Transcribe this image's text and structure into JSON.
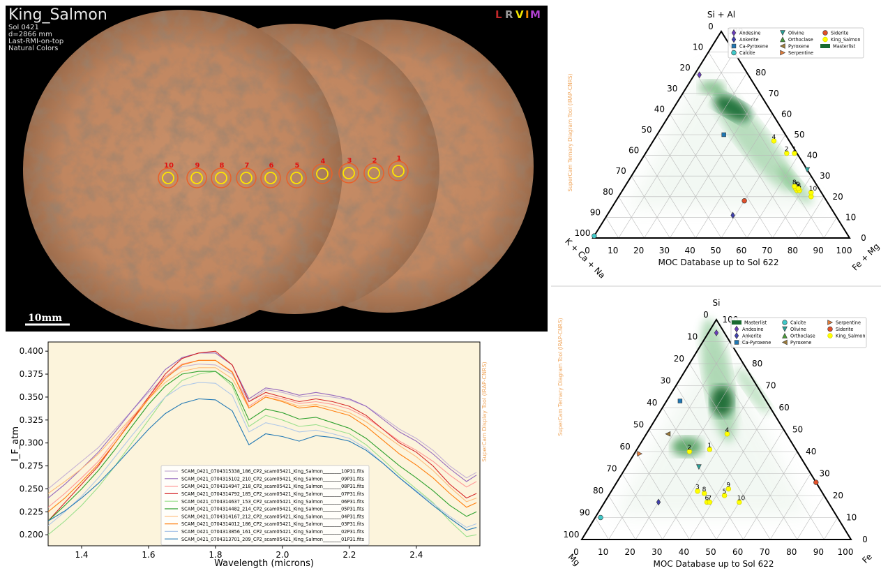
{
  "image_panel": {
    "title": "King_Salmon",
    "info": [
      "Sol 0421",
      "d=2866 mm",
      "Last-RMI-on-top",
      "Natural Colors"
    ],
    "channels": [
      "L",
      "R",
      "V",
      "I",
      "M"
    ],
    "scale_bar": "10mm",
    "targets": [
      "10",
      "9",
      "8",
      "7",
      "6",
      "5",
      "4",
      "3",
      "2",
      "1"
    ]
  },
  "chart_data": [
    {
      "type": "line",
      "xlabel": "Wavelength (microns)",
      "ylabel": "I_F_atm",
      "watermark": "SuperCam Display Tool (IRAP-CNRS)",
      "xlim": [
        1.3,
        2.59
      ],
      "ylim": [
        0.188,
        0.41
      ],
      "xticks": [
        1.4,
        1.6,
        1.8,
        {
          "value": 2.0,
          "label": "2.0"
        },
        2.2,
        2.4
      ],
      "yticks": [
        {
          "value": 0.2,
          "label": "0.200"
        },
        {
          "value": 0.225,
          "label": "0.225"
        },
        {
          "value": 0.25,
          "label": "0.250"
        },
        {
          "value": 0.275,
          "label": "0.275"
        },
        {
          "value": 0.3,
          "label": "0.300"
        },
        {
          "value": 0.325,
          "label": "0.325"
        },
        {
          "value": 0.35,
          "label": "0.350"
        },
        {
          "value": 0.375,
          "label": "0.375"
        },
        {
          "value": 0.4,
          "label": "0.400"
        }
      ],
      "legend": "lower right",
      "x": [
        1.3,
        1.35,
        1.4,
        1.45,
        1.5,
        1.55,
        1.6,
        1.65,
        1.7,
        1.75,
        1.8,
        1.85,
        1.9,
        1.95,
        2.0,
        2.05,
        2.1,
        2.15,
        2.2,
        2.25,
        2.3,
        2.35,
        2.4,
        2.45,
        2.5,
        2.55,
        2.58
      ],
      "series": [
        {
          "name": "SCAM_0421_0704315338_186_CP2_scam05421_King_Salmon________10P31.fits",
          "color": "#c5b0d5",
          "values": [
            0.25,
            0.265,
            0.28,
            0.295,
            0.315,
            0.335,
            0.355,
            0.372,
            0.383,
            0.386,
            0.385,
            0.375,
            0.345,
            0.358,
            0.355,
            0.35,
            0.352,
            0.35,
            0.347,
            0.34,
            0.328,
            0.315,
            0.305,
            0.292,
            0.275,
            0.262,
            0.268
          ]
        },
        {
          "name": "SCAM_0421_0704315102_210_CP2_scam05421_King_Salmon________09P31.fits",
          "color": "#9467bd",
          "values": [
            0.24,
            0.255,
            0.272,
            0.29,
            0.312,
            0.335,
            0.357,
            0.38,
            0.393,
            0.398,
            0.398,
            0.385,
            0.348,
            0.36,
            0.357,
            0.352,
            0.355,
            0.352,
            0.348,
            0.34,
            0.326,
            0.312,
            0.302,
            0.288,
            0.272,
            0.258,
            0.265
          ]
        },
        {
          "name": "SCAM_0421_0704314947_218_CP2_scam05421_King_Salmon________08P31.fits",
          "color": "#ff9896",
          "values": [
            0.23,
            0.245,
            0.262,
            0.28,
            0.303,
            0.327,
            0.35,
            0.372,
            0.386,
            0.39,
            0.39,
            0.378,
            0.34,
            0.352,
            0.348,
            0.343,
            0.345,
            0.342,
            0.337,
            0.328,
            0.315,
            0.302,
            0.292,
            0.28,
            0.265,
            0.252,
            0.258
          ]
        },
        {
          "name": "SCAM_0421_0704314792_185_CP2_scam05421_King_Salmon________07P31.fits",
          "color": "#d62728",
          "values": [
            0.215,
            0.235,
            0.255,
            0.275,
            0.3,
            0.325,
            0.35,
            0.375,
            0.392,
            0.398,
            0.4,
            0.385,
            0.345,
            0.355,
            0.35,
            0.345,
            0.348,
            0.345,
            0.34,
            0.33,
            0.315,
            0.3,
            0.29,
            0.275,
            0.255,
            0.24,
            0.245
          ]
        },
        {
          "name": "SCAM_0421_0704314637_153_CP2_scam05421_King_Salmon________06P31.fits",
          "color": "#98df8a",
          "values": [
            0.2,
            0.215,
            0.232,
            0.252,
            0.275,
            0.3,
            0.325,
            0.35,
            0.368,
            0.375,
            0.378,
            0.362,
            0.318,
            0.33,
            0.325,
            0.318,
            0.32,
            0.315,
            0.31,
            0.298,
            0.282,
            0.265,
            0.25,
            0.235,
            0.215,
            0.198,
            0.2
          ]
        },
        {
          "name": "SCAM_0421_0704314482_214_CP2_scam05421_King_Salmon________05P31.fits",
          "color": "#2ca02c",
          "values": [
            0.215,
            0.232,
            0.25,
            0.27,
            0.293,
            0.318,
            0.342,
            0.362,
            0.375,
            0.378,
            0.378,
            0.365,
            0.325,
            0.337,
            0.333,
            0.326,
            0.328,
            0.322,
            0.316,
            0.305,
            0.29,
            0.275,
            0.262,
            0.248,
            0.232,
            0.22,
            0.225
          ]
        },
        {
          "name": "SCAM_0421_0704314167_212_CP2_scam05421_King_Salmon________04P31.fits",
          "color": "#ffbb78",
          "values": [
            0.245,
            0.258,
            0.272,
            0.288,
            0.308,
            0.328,
            0.348,
            0.366,
            0.378,
            0.382,
            0.382,
            0.37,
            0.338,
            0.35,
            0.346,
            0.34,
            0.342,
            0.338,
            0.333,
            0.323,
            0.31,
            0.297,
            0.285,
            0.27,
            0.252,
            0.236,
            0.24
          ]
        },
        {
          "name": "SCAM_0421_0704314012_186_CP2_scam05421_King_Salmon________03P31.fits",
          "color": "#ff7f0e",
          "values": [
            0.225,
            0.24,
            0.258,
            0.277,
            0.3,
            0.324,
            0.348,
            0.37,
            0.385,
            0.39,
            0.39,
            0.377,
            0.338,
            0.35,
            0.345,
            0.338,
            0.34,
            0.335,
            0.33,
            0.318,
            0.303,
            0.288,
            0.276,
            0.262,
            0.245,
            0.23,
            0.235
          ]
        },
        {
          "name": "SCAM_0421_0704313856_161_CP2_scam05421_King_Salmon________02P31.fits",
          "color": "#aec7e8",
          "values": [
            0.21,
            0.225,
            0.242,
            0.262,
            0.285,
            0.308,
            0.33,
            0.35,
            0.362,
            0.366,
            0.365,
            0.352,
            0.312,
            0.322,
            0.318,
            0.312,
            0.314,
            0.31,
            0.305,
            0.294,
            0.278,
            0.262,
            0.248,
            0.234,
            0.22,
            0.208,
            0.212
          ]
        },
        {
          "name": "SCAM_0421_0704313701_209_CP2_scam05421_King_Salmon________01P31.fits",
          "color": "#1f77b4",
          "values": [
            0.215,
            0.226,
            0.24,
            0.256,
            0.275,
            0.295,
            0.315,
            0.332,
            0.343,
            0.348,
            0.347,
            0.335,
            0.298,
            0.31,
            0.307,
            0.302,
            0.308,
            0.306,
            0.302,
            0.292,
            0.278,
            0.262,
            0.247,
            0.232,
            0.218,
            0.205,
            0.208
          ]
        }
      ]
    },
    {
      "type": "ternary",
      "top_label": "Si + Al",
      "left_label": "K + Ca + Na",
      "right_label": "Fe + Mg",
      "xlabel": "MOC Database up to Sol 622",
      "watermark": "SuperCam Ternary Diagram Tool (IRAP-CNRS)",
      "ticks": [
        0,
        10,
        20,
        30,
        40,
        50,
        60,
        70,
        80,
        90,
        100
      ],
      "grid": true,
      "legend": "upper right",
      "series": [
        {
          "name": "Andesine",
          "color": "#6a3dbd",
          "marker": "diamond",
          "top": [
            79
          ],
          "right": [
            2
          ]
        },
        {
          "name": "Ankerite",
          "color": "#4040b0",
          "marker": "diamond",
          "top": [
            11
          ],
          "right": [
            49
          ]
        },
        {
          "name": "Ca-Pyroxene",
          "color": "#1f77b4",
          "marker": "square",
          "top": [
            50
          ],
          "right": [
            26
          ]
        },
        {
          "name": "Calcite",
          "color": "#40c8c8",
          "marker": "circle",
          "top": [
            1
          ],
          "right": [
            0
          ]
        },
        {
          "name": "Olivine",
          "color": "#2aa198",
          "marker": "tri-down",
          "top": [
            33
          ],
          "right": [
            67
          ]
        },
        {
          "name": "Orthoclase",
          "color": "#4a9a3a",
          "marker": "tri-up",
          "top": [],
          "right": []
        },
        {
          "name": "Pyroxene",
          "color": "#9a7a3a",
          "marker": "tri-left",
          "top": [],
          "right": []
        },
        {
          "name": "Serpentine",
          "color": "#e07b39",
          "marker": "tri-right",
          "top": [],
          "right": []
        },
        {
          "name": "Siderite",
          "color": "#e0502a",
          "marker": "circle",
          "top": [
            18
          ],
          "right": [
            50
          ]
        },
        {
          "name": "King_Salmon",
          "color": "#ffff00",
          "marker": "circle",
          "labels": [
            "1",
            "2",
            "3",
            "4",
            "5",
            "6",
            "7",
            "8",
            "9",
            "10"
          ],
          "top": [
            41,
            41,
            23,
            47,
            23,
            20,
            24,
            25,
            24,
            22
          ],
          "right": [
            58,
            55,
            68,
            47,
            69,
            75,
            67,
            66,
            68,
            74
          ]
        },
        {
          "name": "Masterlist",
          "color": "#1a6b30",
          "marker": "density",
          "top": [],
          "right": []
        }
      ]
    },
    {
      "type": "ternary",
      "top_label": "Si",
      "left_label": "Mg",
      "right_label": "Fe",
      "xlabel": "MOC Database up to Sol 622",
      "watermark": "SuperCam Ternary Diagram Tool (IRAP-CNRS)",
      "ticks": [
        0,
        10,
        20,
        30,
        40,
        50,
        60,
        70,
        80,
        90,
        100
      ],
      "grid": true,
      "legend": "upper right",
      "series": [
        {
          "name": "Masterlist",
          "color": "#1a6b30",
          "marker": "density",
          "top": [],
          "right": []
        },
        {
          "name": "Andesine",
          "color": "#6a3dbd",
          "marker": "diamond",
          "top": [
            94
          ],
          "right": [
            3
          ]
        },
        {
          "name": "Ankerite",
          "color": "#4040b0",
          "marker": "diamond",
          "top": [
            17
          ],
          "right": [
            20
          ]
        },
        {
          "name": "Ca-Pyroxene",
          "color": "#1f77b4",
          "marker": "square",
          "top": [
            63
          ],
          "right": [
            5
          ]
        },
        {
          "name": "Calcite",
          "color": "#40c8c8",
          "marker": "circle",
          "top": [
            10
          ],
          "right": [
            2
          ]
        },
        {
          "name": "Olivine",
          "color": "#2aa198",
          "marker": "tri-down",
          "top": [
            33
          ],
          "right": [
            27
          ]
        },
        {
          "name": "Orthoclase",
          "color": "#4a9a3a",
          "marker": "tri-up",
          "top": [],
          "right": []
        },
        {
          "name": "Pyroxene",
          "color": "#9a7a3a",
          "marker": "tri-left",
          "top": [
            48
          ],
          "right": [
            8
          ]
        },
        {
          "name": "Serpentine",
          "color": "#e07b39",
          "marker": "tri-right",
          "top": [
            39
          ],
          "right": [
            2
          ]
        },
        {
          "name": "Siderite",
          "color": "#e0502a",
          "marker": "circle",
          "top": [
            26
          ],
          "right": [
            74
          ]
        },
        {
          "name": "King_Salmon",
          "color": "#ffff00",
          "marker": "circle",
          "labels": [
            "1",
            "2",
            "3",
            "4",
            "5",
            "6",
            "7",
            "8",
            "9",
            "10"
          ],
          "top": [
            41,
            40,
            22,
            48,
            20,
            17,
            17,
            21,
            23,
            17
          ],
          "right": [
            27,
            20,
            32,
            30,
            43,
            38,
            39,
            35,
            43,
            50
          ]
        }
      ]
    }
  ]
}
